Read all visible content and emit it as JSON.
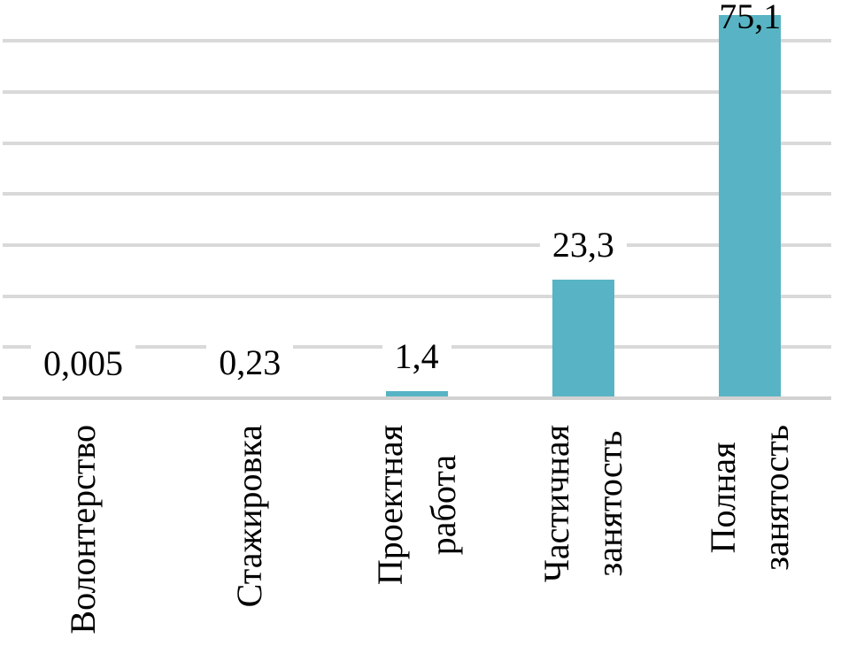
{
  "chart_data": {
    "type": "bar",
    "categories": [
      "Волонтерство",
      "Стажировка",
      "Проектная работа",
      "Частичная занятость",
      "Полная занятость"
    ],
    "category_lines": [
      [
        "Волонтерство"
      ],
      [
        "Стажировка"
      ],
      [
        "Проектная",
        "работа"
      ],
      [
        "Частичная",
        "занятость"
      ],
      [
        "Полная",
        "занятость"
      ]
    ],
    "values": [
      0.005,
      0.23,
      1.4,
      23.3,
      75.1
    ],
    "value_labels": [
      "0,005",
      "0,23",
      "1,4",
      "23,3",
      "75,1"
    ],
    "title": "",
    "xlabel": "",
    "ylabel": "",
    "ylim": [
      0,
      78
    ],
    "gridline_step": 10,
    "grid": true,
    "legend": "none",
    "bar_color": "#58b4c4",
    "gridline_color": "#d9d9d9",
    "axis_line_color": "#d2d2d2",
    "text_color": "#000000"
  }
}
